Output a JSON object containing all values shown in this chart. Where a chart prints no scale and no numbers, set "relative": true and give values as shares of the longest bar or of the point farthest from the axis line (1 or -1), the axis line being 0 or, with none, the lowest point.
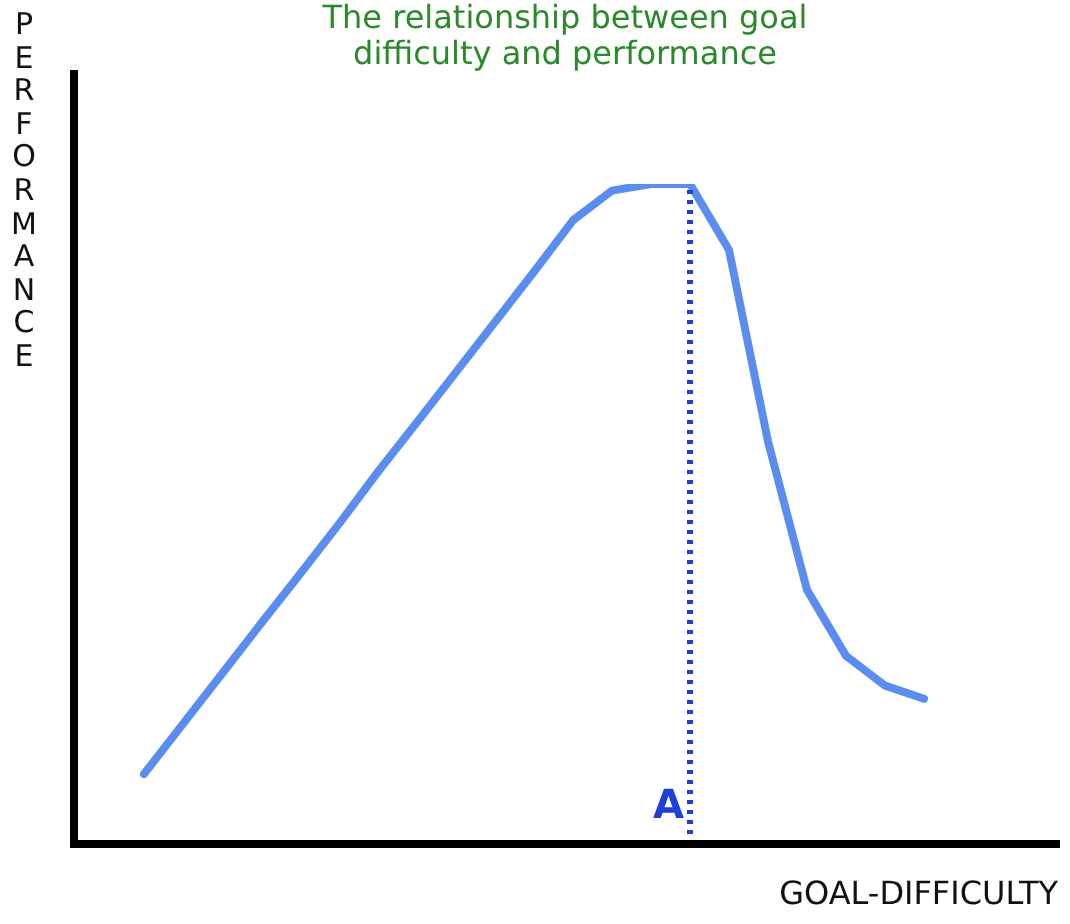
{
  "chart_data": {
    "type": "line",
    "title": "The relationship between goal difficulty and performance",
    "xlabel": "GOAL-DIFFICULTY",
    "ylabel": "PERFORMANCE",
    "relative": true,
    "marker": "none",
    "line_style": "solid",
    "categories": [
      null,
      null,
      null,
      null,
      null,
      null,
      null,
      null,
      null,
      null,
      null,
      null,
      null,
      null,
      null,
      null,
      null,
      null,
      null,
      null,
      null
    ],
    "series": [
      {
        "color": "#5b8cf0",
        "values": [
          0.106,
          0.182,
          0.258,
          0.334,
          0.409,
          0.485,
          0.564,
          0.639,
          0.715,
          0.791,
          0.867,
          0.945,
          0.99,
          1,
          1,
          0.9,
          0.61,
          0.385,
          0.285,
          0.24,
          0.22
        ]
      }
    ],
    "ref_lines": [
      {
        "axis": "x",
        "label": "A",
        "color": "#1f3fd6",
        "line_style": "dotted"
      }
    ]
  }
}
